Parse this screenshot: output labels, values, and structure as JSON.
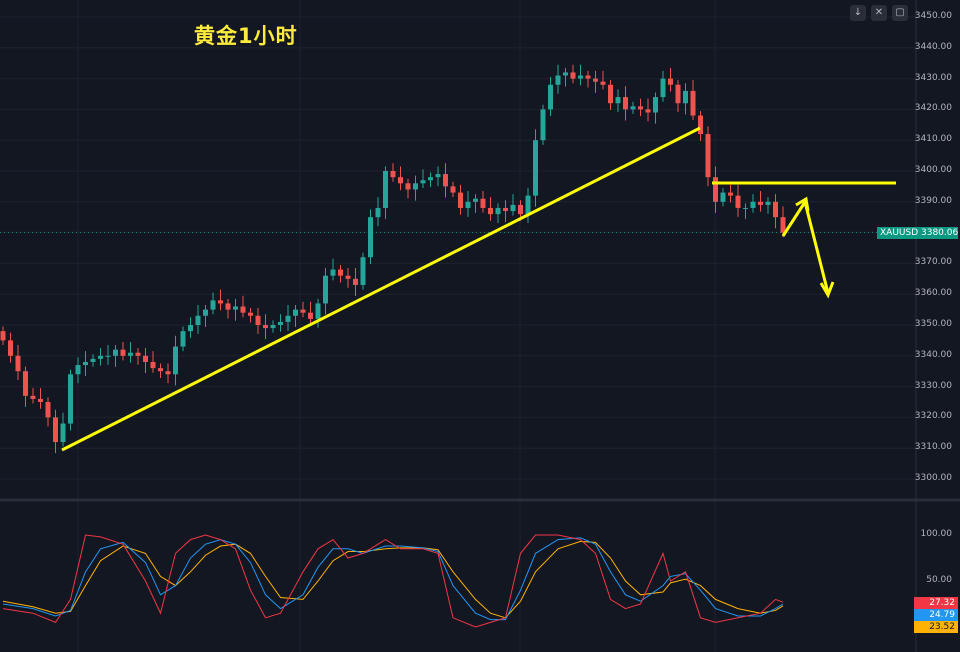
{
  "title": "黄金1小时",
  "symbol": "XAUUSD",
  "last_price": "3380.06",
  "colors": {
    "up": "#26a69a",
    "down": "#ef5350",
    "drawing": "#ffff00",
    "k": "#f23645",
    "d": "#2196f3",
    "signal": "#ffb300"
  },
  "chart_data": {
    "type": "candlestick",
    "title": "黄金1小时",
    "price_ticks": [
      "3450.00",
      "3440.00",
      "3430.00",
      "3420.00",
      "3410.00",
      "3400.00",
      "3390.00",
      "3370.00",
      "3360.00",
      "3350.00",
      "3340.00",
      "3330.00",
      "3320.00",
      "3310.00",
      "3300.00"
    ],
    "ylim": [
      3296,
      3455
    ],
    "closes": [
      3345,
      3340,
      3335,
      3327,
      3326,
      3325,
      3320,
      3312,
      3318,
      3334,
      3337,
      3338,
      3339,
      3340,
      3340,
      3342,
      3340,
      3341,
      3340,
      3338,
      3336,
      3335,
      3334,
      3343,
      3348,
      3350,
      3353,
      3355,
      3358,
      3357,
      3355,
      3356,
      3354,
      3353,
      3350,
      3349,
      3350,
      3351,
      3353,
      3355,
      3354,
      3352,
      3357,
      3366,
      3368,
      3366,
      3365,
      3363,
      3372,
      3385,
      3388,
      3400,
      3398,
      3396,
      3394,
      3396,
      3397,
      3398,
      3399,
      3395,
      3393,
      3388,
      3390,
      3391,
      3388,
      3386,
      3388,
      3387,
      3389,
      3386,
      3392,
      3410,
      3420,
      3428,
      3431,
      3432,
      3430,
      3431,
      3430,
      3429,
      3428,
      3422,
      3424,
      3420,
      3421,
      3420,
      3419,
      3424,
      3430,
      3428,
      3422,
      3426,
      3418,
      3412,
      3398,
      3390,
      3393,
      3392,
      3388,
      3388,
      3390,
      3389,
      3390,
      3385,
      3380
    ],
    "indicator": {
      "ticks": [
        "100.00",
        "50.00"
      ],
      "ylim": [
        0,
        120
      ],
      "values": {
        "k": "27.32",
        "d": "24.79",
        "signal": "23.52"
      },
      "k": [
        20,
        15,
        5,
        30,
        100,
        98,
        90,
        50,
        15,
        80,
        95,
        100,
        95,
        85,
        40,
        10,
        15,
        60,
        85,
        95,
        75,
        80,
        95,
        85,
        85,
        80,
        10,
        0,
        5,
        10,
        80,
        100,
        100,
        95,
        80,
        30,
        20,
        25,
        80,
        50,
        60,
        10,
        5,
        10,
        15,
        30,
        27
      ],
      "d": [
        25,
        20,
        12,
        18,
        60,
        85,
        92,
        70,
        35,
        45,
        75,
        90,
        95,
        90,
        70,
        35,
        20,
        35,
        65,
        85,
        85,
        80,
        88,
        88,
        86,
        82,
        45,
        15,
        8,
        8,
        40,
        80,
        95,
        97,
        90,
        60,
        35,
        28,
        45,
        55,
        58,
        40,
        20,
        12,
        12,
        20,
        25
      ],
      "signal": [
        28,
        22,
        15,
        17,
        45,
        72,
        88,
        80,
        55,
        45,
        60,
        78,
        88,
        90,
        80,
        55,
        32,
        30,
        50,
        72,
        82,
        82,
        85,
        86,
        86,
        84,
        60,
        30,
        15,
        10,
        28,
        60,
        85,
        93,
        92,
        75,
        50,
        35,
        38,
        48,
        52,
        45,
        30,
        20,
        15,
        18,
        23
      ],
      "x_index": [
        0,
        4,
        7,
        9,
        11,
        13,
        16,
        19,
        21,
        23,
        25,
        27,
        29,
        31,
        33,
        35,
        37,
        40,
        42,
        44,
        46,
        48,
        51,
        53,
        56,
        58,
        60,
        63,
        65,
        67,
        69,
        71,
        74,
        77,
        79,
        81,
        83,
        85,
        88,
        89,
        91,
        93,
        95,
        98,
        101,
        103,
        104
      ]
    }
  }
}
